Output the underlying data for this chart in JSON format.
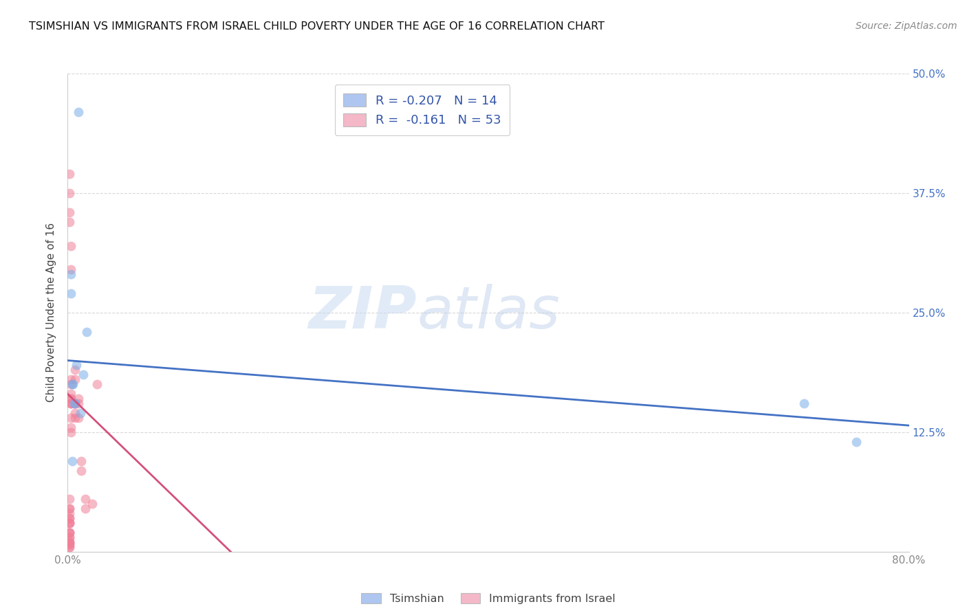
{
  "title": "TSIMSHIAN VS IMMIGRANTS FROM ISRAEL CHILD POVERTY UNDER THE AGE OF 16 CORRELATION CHART",
  "source": "Source: ZipAtlas.com",
  "ylabel": "Child Poverty Under the Age of 16",
  "xlim": [
    0.0,
    0.8
  ],
  "ylim": [
    0.0,
    0.5
  ],
  "ytick_right_labels": [
    "12.5%",
    "25.0%",
    "37.5%",
    "50.0%"
  ],
  "legend_color1": "#aec6f0",
  "legend_color2": "#f4b8c8",
  "tsimshian_color": "#7baee8",
  "israel_color": "#f08098",
  "trend_tsimshian_color": "#4472c4",
  "trend_israel_color": "#d4507a",
  "grid_color": "#d8d8d8",
  "background_color": "#ffffff",
  "watermark_zip": "ZIP",
  "watermark_atlas": "atlas",
  "tsimshian_R": -0.207,
  "tsimshian_N": 14,
  "israel_R": -0.161,
  "israel_N": 53,
  "tsimshian_x": [
    0.01,
    0.003,
    0.003,
    0.008,
    0.005,
    0.006,
    0.015,
    0.007,
    0.012,
    0.018,
    0.004,
    0.7,
    0.75,
    0.004
  ],
  "tsimshian_y": [
    0.46,
    0.29,
    0.27,
    0.195,
    0.175,
    0.155,
    0.185,
    0.155,
    0.145,
    0.23,
    0.095,
    0.155,
    0.115,
    0.175
  ],
  "israel_x": [
    0.002,
    0.002,
    0.002,
    0.002,
    0.003,
    0.003,
    0.003,
    0.003,
    0.003,
    0.003,
    0.003,
    0.003,
    0.003,
    0.003,
    0.003,
    0.003,
    0.003,
    0.007,
    0.007,
    0.007,
    0.007,
    0.007,
    0.007,
    0.01,
    0.01,
    0.01,
    0.013,
    0.013,
    0.017,
    0.017,
    0.023,
    0.028,
    0.002,
    0.002,
    0.002,
    0.002,
    0.002,
    0.002,
    0.002,
    0.002,
    0.002,
    0.002,
    0.002,
    0.002,
    0.002,
    0.002,
    0.002,
    0.002,
    0.002,
    0.002,
    0.002,
    0.002,
    0.002
  ],
  "israel_y": [
    0.395,
    0.375,
    0.355,
    0.345,
    0.32,
    0.295,
    0.18,
    0.175,
    0.165,
    0.155,
    0.155,
    0.16,
    0.16,
    0.155,
    0.14,
    0.13,
    0.125,
    0.155,
    0.18,
    0.19,
    0.155,
    0.145,
    0.14,
    0.155,
    0.16,
    0.14,
    0.095,
    0.085,
    0.055,
    0.045,
    0.05,
    0.175,
    0.055,
    0.045,
    0.045,
    0.04,
    0.035,
    0.035,
    0.03,
    0.03,
    0.03,
    0.02,
    0.02,
    0.02,
    0.015,
    0.015,
    0.01,
    0.01,
    0.01,
    0.008,
    0.008,
    0.005,
    0.005
  ],
  "blue_trend_x0": 0.0,
  "blue_trend_y0": 0.2,
  "blue_trend_x1": 0.8,
  "blue_trend_y1": 0.132,
  "pink_trend_x0": 0.0,
  "pink_trend_y0": 0.165,
  "pink_trend_x1": 0.155,
  "pink_trend_y1": 0.0,
  "marker_size": 100,
  "marker_alpha": 0.55
}
